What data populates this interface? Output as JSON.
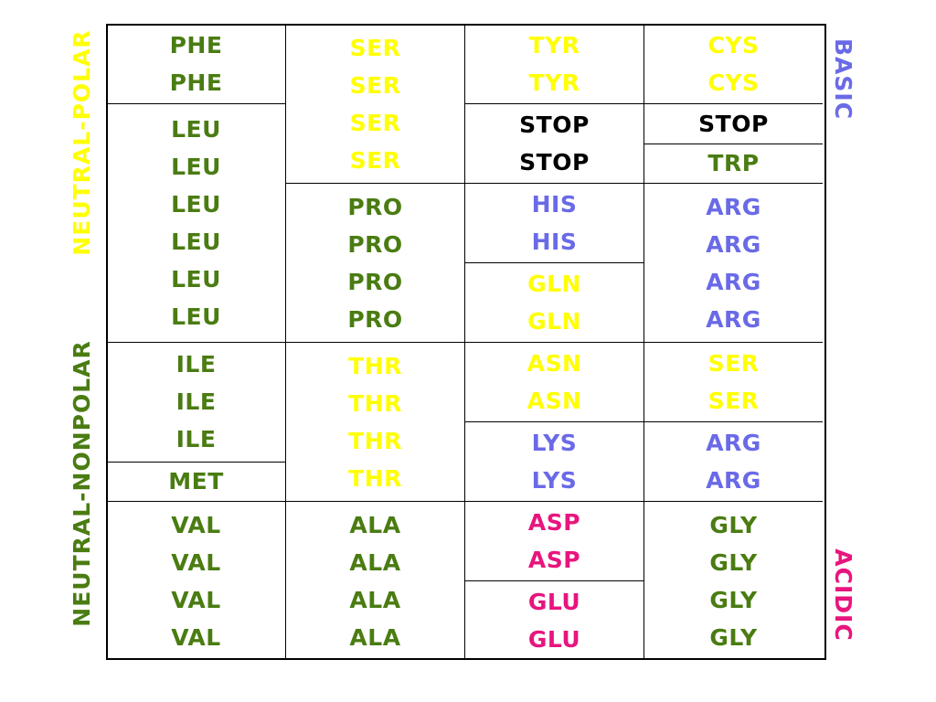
{
  "colors": {
    "polar": "#ffff00",
    "nonpolar": "#4a7c12",
    "basic": "#6a6ae8",
    "acidic": "#e8157e",
    "stop": "#000000"
  },
  "side_labels": {
    "neutral_polar": "NEUTRAL-POLAR",
    "neutral_nonpolar": "NEUTRAL-NONPOLAR",
    "basic": "BASIC",
    "acidic": "ACIDIC"
  },
  "cells": [
    {
      "col": 0,
      "row": 0,
      "span": 2,
      "cls": "nonpolar",
      "words": [
        "PHE",
        "PHE"
      ]
    },
    {
      "col": 0,
      "row": 2,
      "span": 6,
      "cls": "nonpolar",
      "words": [
        "LEU",
        "LEU",
        "LEU",
        "LEU",
        "LEU",
        "LEU"
      ]
    },
    {
      "col": 0,
      "row": 8,
      "span": 3,
      "cls": "nonpolar",
      "words": [
        "ILE",
        "ILE",
        "ILE"
      ]
    },
    {
      "col": 0,
      "row": 11,
      "span": 1,
      "cls": "nonpolar",
      "words": [
        "MET"
      ]
    },
    {
      "col": 0,
      "row": 12,
      "span": 4,
      "cls": "nonpolar",
      "words": [
        "VAL",
        "VAL",
        "VAL",
        "VAL"
      ]
    },
    {
      "col": 1,
      "row": 0,
      "span": 4,
      "cls": "polar",
      "words": [
        "SER",
        "SER",
        "SER",
        "SER"
      ]
    },
    {
      "col": 1,
      "row": 4,
      "span": 4,
      "cls": "nonpolar",
      "words": [
        "PRO",
        "PRO",
        "PRO",
        "PRO"
      ]
    },
    {
      "col": 1,
      "row": 8,
      "span": 4,
      "cls": "polar",
      "words": [
        "THR",
        "THR",
        "THR",
        "THR"
      ]
    },
    {
      "col": 1,
      "row": 12,
      "span": 4,
      "cls": "nonpolar",
      "words": [
        "ALA",
        "ALA",
        "ALA",
        "ALA"
      ]
    },
    {
      "col": 2,
      "row": 0,
      "span": 2,
      "cls": "polar",
      "words": [
        "TYR",
        "TYR"
      ]
    },
    {
      "col": 2,
      "row": 2,
      "span": 2,
      "cls": "stop",
      "words": [
        "STOP",
        "STOP"
      ]
    },
    {
      "col": 2,
      "row": 4,
      "span": 2,
      "cls": "basic",
      "words": [
        "HIS",
        "HIS"
      ]
    },
    {
      "col": 2,
      "row": 6,
      "span": 2,
      "cls": "polar",
      "words": [
        "GLN",
        "GLN"
      ]
    },
    {
      "col": 2,
      "row": 8,
      "span": 2,
      "cls": "polar",
      "words": [
        "ASN",
        "ASN"
      ]
    },
    {
      "col": 2,
      "row": 10,
      "span": 2,
      "cls": "basic",
      "words": [
        "LYS",
        "LYS"
      ]
    },
    {
      "col": 2,
      "row": 12,
      "span": 2,
      "cls": "acidic",
      "words": [
        "ASP",
        "ASP"
      ]
    },
    {
      "col": 2,
      "row": 14,
      "span": 2,
      "cls": "acidic",
      "words": [
        "GLU",
        "GLU"
      ]
    },
    {
      "col": 3,
      "row": 0,
      "span": 2,
      "cls": "polar",
      "words": [
        "CYS",
        "CYS"
      ]
    },
    {
      "col": 3,
      "row": 2,
      "span": 1,
      "cls": "stop",
      "words": [
        "STOP"
      ]
    },
    {
      "col": 3,
      "row": 3,
      "span": 1,
      "cls": "nonpolar",
      "words": [
        "TRP"
      ]
    },
    {
      "col": 3,
      "row": 4,
      "span": 4,
      "cls": "basic",
      "words": [
        "ARG",
        "ARG",
        "ARG",
        "ARG"
      ]
    },
    {
      "col": 3,
      "row": 8,
      "span": 2,
      "cls": "polar",
      "words": [
        "SER",
        "SER"
      ]
    },
    {
      "col": 3,
      "row": 10,
      "span": 2,
      "cls": "basic",
      "words": [
        "ARG",
        "ARG"
      ]
    },
    {
      "col": 3,
      "row": 12,
      "span": 4,
      "cls": "nonpolar",
      "words": [
        "GLY",
        "GLY",
        "GLY",
        "GLY"
      ]
    }
  ]
}
